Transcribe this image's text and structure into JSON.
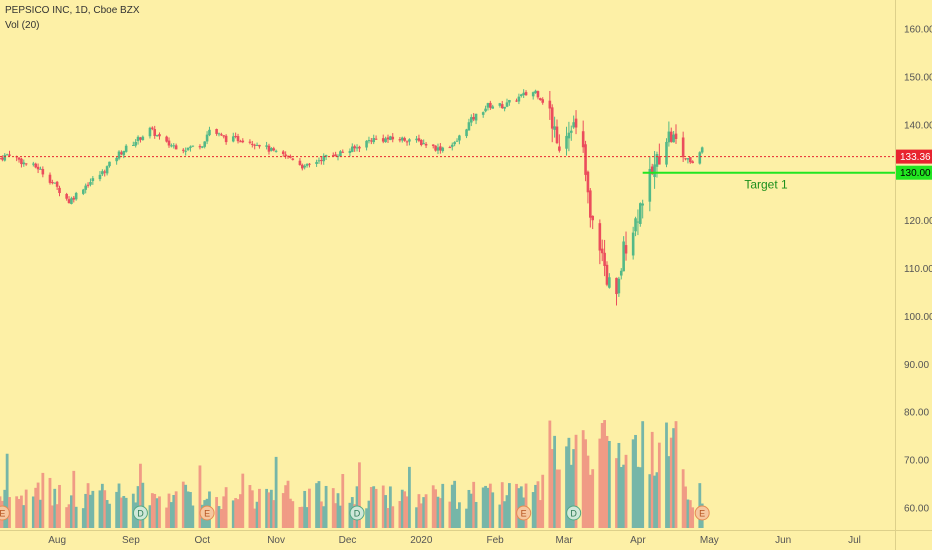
{
  "header": {
    "title": "PEPSICO INC, 1D, Cboe BZX",
    "volume_indicator": "Vol (20)"
  },
  "price_badges": [
    {
      "label": "133.36",
      "color": "#e8242f"
    },
    {
      "label": "130.00",
      "color": "#21e621"
    }
  ],
  "annotation": {
    "label": "Target 1",
    "value": 130,
    "color": "#21e621"
  },
  "colors": {
    "background": "#fdf0a6",
    "up": "#53b987",
    "down": "#eb4d5c",
    "vol_up": "#76b6a8",
    "vol_down": "#f09b85",
    "price_line": "#e8242f"
  },
  "event_markers": [
    {
      "type": "E",
      "date": "2019-07-09"
    },
    {
      "type": "D",
      "date": "2019-09-05"
    },
    {
      "type": "E",
      "date": "2019-10-03"
    },
    {
      "type": "D",
      "date": "2019-12-05"
    },
    {
      "type": "E",
      "date": "2020-02-13"
    },
    {
      "type": "D",
      "date": "2020-03-05"
    },
    {
      "type": "E",
      "date": "2020-04-28"
    }
  ],
  "chart_data": {
    "type": "candlestick",
    "title": "PEPSICO INC, 1D, Cboe BZX",
    "x_range": [
      "2019-07-08",
      "2020-07-18"
    ],
    "y_range": [
      56,
      165
    ],
    "y_ticks": [
      60,
      70,
      80,
      90,
      100,
      110,
      120,
      130,
      140,
      150,
      160
    ],
    "x_ticks": [
      {
        "label": "Aug",
        "date": "2019-08-01"
      },
      {
        "label": "Sep",
        "date": "2019-09-01"
      },
      {
        "label": "Oct",
        "date": "2019-10-01"
      },
      {
        "label": "Nov",
        "date": "2019-11-01"
      },
      {
        "label": "Dec",
        "date": "2019-12-01"
      },
      {
        "label": "2020",
        "date": "2020-01-01"
      },
      {
        "label": "Feb",
        "date": "2020-02-01"
      },
      {
        "label": "Mar",
        "date": "2020-03-01"
      },
      {
        "label": "Apr",
        "date": "2020-04-01"
      },
      {
        "label": "May",
        "date": "2020-05-01"
      },
      {
        "label": "Jun",
        "date": "2020-06-01"
      },
      {
        "label": "Jul",
        "date": "2020-07-01"
      }
    ],
    "last_price": 133.36,
    "target_level": 130,
    "price_anchors": [
      [
        "2019-07-08",
        133
      ],
      [
        "2019-07-12",
        134
      ],
      [
        "2019-07-18",
        132
      ],
      [
        "2019-07-24",
        131
      ],
      [
        "2019-07-30",
        128
      ],
      [
        "2019-08-06",
        124
      ],
      [
        "2019-08-12",
        127
      ],
      [
        "2019-08-20",
        130
      ],
      [
        "2019-08-27",
        134
      ],
      [
        "2019-09-04",
        137
      ],
      [
        "2019-09-09",
        139
      ],
      [
        "2019-09-16",
        136
      ],
      [
        "2019-09-24",
        135
      ],
      [
        "2019-10-01",
        136
      ],
      [
        "2019-10-04",
        139
      ],
      [
        "2019-10-11",
        137
      ],
      [
        "2019-10-18",
        137
      ],
      [
        "2019-10-25",
        136
      ],
      [
        "2019-11-01",
        134
      ],
      [
        "2019-11-08",
        133
      ],
      [
        "2019-11-13",
        131
      ],
      [
        "2019-11-20",
        133
      ],
      [
        "2019-11-27",
        134
      ],
      [
        "2019-12-04",
        135
      ],
      [
        "2019-12-11",
        137
      ],
      [
        "2019-12-18",
        137
      ],
      [
        "2019-12-27",
        137
      ],
      [
        "2020-01-03",
        136
      ],
      [
        "2020-01-08",
        135
      ],
      [
        "2020-01-15",
        136
      ],
      [
        "2020-01-22",
        141
      ],
      [
        "2020-01-29",
        144
      ],
      [
        "2020-02-05",
        144
      ],
      [
        "2020-02-12",
        146
      ],
      [
        "2020-02-18",
        147
      ],
      [
        "2020-02-24",
        143
      ],
      [
        "2020-02-27",
        135
      ],
      [
        "2020-03-04",
        141
      ],
      [
        "2020-03-09",
        134
      ],
      [
        "2020-03-12",
        120
      ],
      [
        "2020-03-16",
        115
      ],
      [
        "2020-03-19",
        108
      ],
      [
        "2020-03-23",
        103
      ],
      [
        "2020-03-26",
        114
      ],
      [
        "2020-03-31",
        120
      ],
      [
        "2020-04-03",
        125
      ],
      [
        "2020-04-08",
        131
      ],
      [
        "2020-04-13",
        138
      ],
      [
        "2020-04-16",
        137
      ],
      [
        "2020-04-21",
        133
      ],
      [
        "2020-04-24",
        132
      ],
      [
        "2020-04-28",
        135
      ]
    ],
    "volume_scale": [
      57,
      85
    ]
  }
}
